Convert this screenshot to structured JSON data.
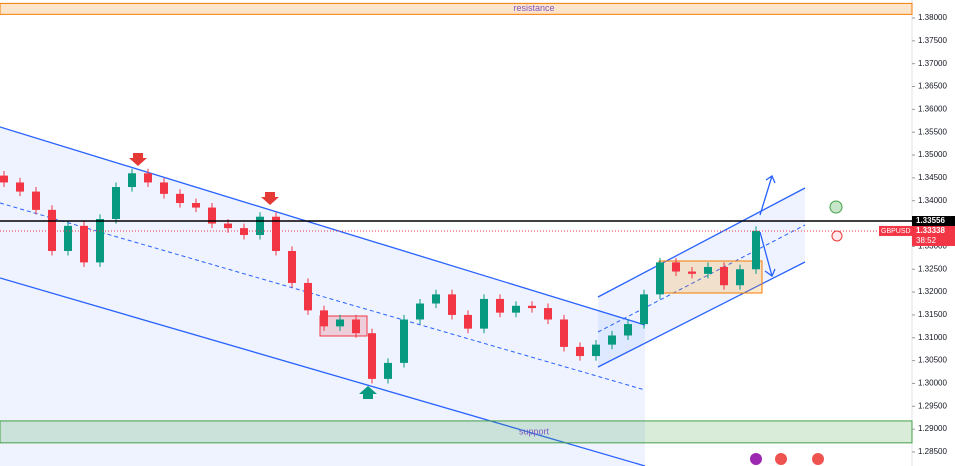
{
  "chart_data": {
    "type": "candlestick",
    "ylim": [
      1.28193,
      1.38394
    ],
    "yticks": [
      {
        "value": 1.38,
        "label": "1.38000"
      },
      {
        "value": 1.375,
        "label": "1.37500"
      },
      {
        "value": 1.37,
        "label": "1.37000"
      },
      {
        "value": 1.365,
        "label": "1.36500"
      },
      {
        "value": 1.36,
        "label": "1.36000"
      },
      {
        "value": 1.355,
        "label": "1.35500"
      },
      {
        "value": 1.35,
        "label": "1.35000"
      },
      {
        "value": 1.345,
        "label": "1.34500"
      },
      {
        "value": 1.34,
        "label": "1.34000"
      },
      {
        "value": 1.335,
        "label": "1.33500"
      },
      {
        "value": 1.33,
        "label": "1.33000"
      },
      {
        "value": 1.325,
        "label": "1.32500"
      },
      {
        "value": 1.32,
        "label": "1.32000"
      },
      {
        "value": 1.315,
        "label": "1.31500"
      },
      {
        "value": 1.31,
        "label": "1.31000"
      },
      {
        "value": 1.305,
        "label": "1.30500"
      },
      {
        "value": 1.3,
        "label": "1.30000"
      },
      {
        "value": 1.295,
        "label": "1.29500"
      },
      {
        "value": 1.29,
        "label": "1.29000"
      },
      {
        "value": 1.285,
        "label": "1.28500"
      }
    ],
    "up_color": "#089981",
    "down_color": "#f23645",
    "series": [
      {
        "name": "GBPUSD",
        "open": [
          1.3455,
          1.344,
          1.342,
          1.338,
          1.329,
          1.3345,
          1.3265,
          1.336,
          1.343,
          1.346,
          1.344,
          1.3415,
          1.3395,
          1.3385,
          1.335,
          1.334,
          1.3325,
          1.3365,
          1.329,
          1.322,
          1.316,
          1.3125,
          1.314,
          1.311,
          1.301,
          1.3045,
          1.314,
          1.3175,
          1.3195,
          1.315,
          1.312,
          1.3185,
          1.3155,
          1.317,
          1.3165,
          1.314,
          1.308,
          1.306,
          1.3085,
          1.3105,
          1.313,
          1.3195,
          1.3265,
          1.3245,
          1.324,
          1.3255,
          1.3215,
          1.325
        ],
        "high": [
          1.3465,
          1.345,
          1.343,
          1.339,
          1.3355,
          1.3355,
          1.337,
          1.344,
          1.347,
          1.347,
          1.345,
          1.3425,
          1.3405,
          1.3395,
          1.336,
          1.335,
          1.3375,
          1.3375,
          1.33,
          1.323,
          1.317,
          1.315,
          1.315,
          1.312,
          1.3055,
          1.315,
          1.3185,
          1.3205,
          1.3205,
          1.316,
          1.3195,
          1.3195,
          1.318,
          1.318,
          1.3175,
          1.315,
          1.309,
          1.3095,
          1.3115,
          1.314,
          1.3205,
          1.3275,
          1.3275,
          1.3255,
          1.3265,
          1.3265,
          1.326,
          1.3344
        ],
        "low": [
          1.343,
          1.341,
          1.337,
          1.328,
          1.328,
          1.3255,
          1.3255,
          1.335,
          1.342,
          1.343,
          1.3405,
          1.3385,
          1.3375,
          1.334,
          1.333,
          1.3315,
          1.3315,
          1.328,
          1.321,
          1.315,
          1.3115,
          1.3115,
          1.31,
          1.3,
          1.3,
          1.3035,
          1.313,
          1.3165,
          1.314,
          1.311,
          1.311,
          1.3145,
          1.3145,
          1.3155,
          1.313,
          1.307,
          1.305,
          1.305,
          1.3075,
          1.3095,
          1.312,
          1.3185,
          1.3235,
          1.323,
          1.323,
          1.3205,
          1.3205,
          1.324
        ],
        "close": [
          1.344,
          1.342,
          1.338,
          1.329,
          1.3345,
          1.3265,
          1.336,
          1.343,
          1.346,
          1.344,
          1.3415,
          1.3395,
          1.3385,
          1.335,
          1.334,
          1.3325,
          1.3365,
          1.329,
          1.322,
          1.316,
          1.3125,
          1.314,
          1.311,
          1.301,
          1.3045,
          1.314,
          1.3175,
          1.3195,
          1.315,
          1.312,
          1.3185,
          1.3155,
          1.317,
          1.3165,
          1.314,
          1.308,
          1.306,
          1.3085,
          1.3105,
          1.313,
          1.3195,
          1.3265,
          1.3245,
          1.324,
          1.3255,
          1.3215,
          1.325,
          1.3334
        ]
      }
    ],
    "zones": [
      {
        "label": "resistance",
        "from": 1.3808,
        "to": 1.3832,
        "color": "#f57c00"
      },
      {
        "label": "support",
        "from": 1.287,
        "to": 1.2918,
        "color": "#43a047"
      }
    ],
    "price_lines": [
      {
        "value": 1.33556,
        "label": "1.33556",
        "color": "#000000"
      },
      {
        "value": 1.33338,
        "label": "1.33338",
        "color": "#f23645"
      }
    ],
    "countdown": "38:52"
  }
}
